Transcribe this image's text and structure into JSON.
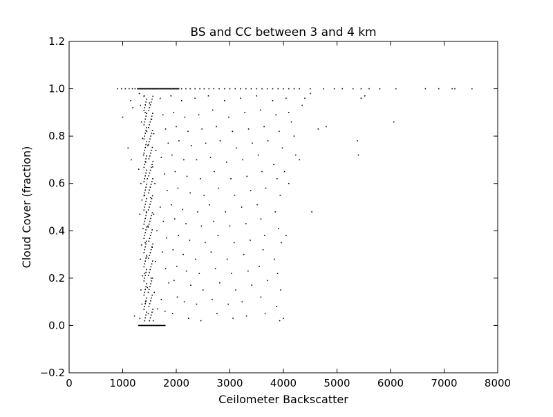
{
  "chart_data": {
    "type": "scatter",
    "title": "BS and CC between 3 and 4 km",
    "xlabel": "Ceilometer Backscatter",
    "ylabel": "Cloud Cover (fraction)",
    "xlim": [
      0,
      8000
    ],
    "ylim": [
      -0.2,
      1.2
    ],
    "xticks": [
      "0",
      "1000",
      "2000",
      "3000",
      "4000",
      "5000",
      "6000",
      "7000",
      "8000"
    ],
    "yticks": [
      "−0.2",
      "0.0",
      "0.2",
      "0.4",
      "0.6",
      "0.8",
      "1.0",
      "1.2"
    ],
    "grid": false,
    "legend": "none",
    "marker_color": "#000000",
    "points": [
      [
        900,
        1.0
      ],
      [
        980,
        1.0
      ],
      [
        1050,
        1.0
      ],
      [
        1120,
        1.0
      ],
      [
        1180,
        1.0
      ],
      [
        1230,
        1.0
      ],
      [
        1280,
        1.0
      ],
      [
        1320,
        1.0
      ],
      [
        1360,
        1.0
      ],
      [
        1400,
        1.0
      ],
      [
        1440,
        1.0
      ],
      [
        1480,
        1.0
      ],
      [
        1520,
        1.0
      ],
      [
        1560,
        1.0
      ],
      [
        1600,
        1.0
      ],
      [
        1650,
        1.0
      ],
      [
        1700,
        1.0
      ],
      [
        1760,
        1.0
      ],
      [
        1820,
        1.0
      ],
      [
        1880,
        1.0
      ],
      [
        1950,
        1.0
      ],
      [
        2020,
        1.0
      ],
      [
        2100,
        1.0
      ],
      [
        2180,
        1.0
      ],
      [
        2260,
        1.0
      ],
      [
        2350,
        1.0
      ],
      [
        2440,
        1.0
      ],
      [
        2520,
        1.0
      ],
      [
        2610,
        1.0
      ],
      [
        2700,
        1.0
      ],
      [
        2800,
        1.0
      ],
      [
        2900,
        1.0
      ],
      [
        3000,
        1.0
      ],
      [
        3100,
        1.0
      ],
      [
        3200,
        1.0
      ],
      [
        3300,
        1.0
      ],
      [
        3400,
        1.0
      ],
      [
        3500,
        1.0
      ],
      [
        3600,
        1.0
      ],
      [
        3700,
        1.0
      ],
      [
        3800,
        1.0
      ],
      [
        3900,
        1.0
      ],
      [
        4000,
        1.0
      ],
      [
        4100,
        1.0
      ],
      [
        4200,
        1.0
      ],
      [
        4300,
        1.0
      ],
      [
        4500,
        1.0
      ],
      [
        4750,
        1.0
      ],
      [
        4950,
        1.0
      ],
      [
        5100,
        1.0
      ],
      [
        5300,
        1.0
      ],
      [
        5450,
        1.0
      ],
      [
        5600,
        1.0
      ],
      [
        5800,
        1.0
      ],
      [
        6100,
        1.0
      ],
      [
        6650,
        1.0
      ],
      [
        6900,
        1.0
      ],
      [
        7150,
        1.0
      ],
      [
        7200,
        1.0
      ],
      [
        7520,
        1.0
      ],
      [
        1000,
        0.88
      ],
      [
        1100,
        0.75
      ],
      [
        1150,
        0.95
      ],
      [
        1190,
        0.92
      ],
      [
        1160,
        0.7
      ],
      [
        1220,
        0.04
      ],
      [
        1310,
        0.98
      ],
      [
        1330,
        0.93
      ],
      [
        1350,
        0.86
      ],
      [
        1370,
        0.79
      ],
      [
        1390,
        0.72
      ],
      [
        1300,
        0.66
      ],
      [
        1340,
        0.6
      ],
      [
        1360,
        0.53
      ],
      [
        1320,
        0.47
      ],
      [
        1380,
        0.41
      ],
      [
        1350,
        0.34
      ],
      [
        1330,
        0.28
      ],
      [
        1370,
        0.21
      ],
      [
        1340,
        0.15
      ],
      [
        1360,
        0.09
      ],
      [
        1320,
        0.03
      ],
      [
        1400,
        0.97
      ],
      [
        1420,
        0.9
      ],
      [
        1450,
        0.82
      ],
      [
        1470,
        0.76
      ],
      [
        1430,
        0.69
      ],
      [
        1460,
        0.62
      ],
      [
        1410,
        0.55
      ],
      [
        1440,
        0.48
      ],
      [
        1470,
        0.42
      ],
      [
        1420,
        0.35
      ],
      [
        1450,
        0.29
      ],
      [
        1410,
        0.22
      ],
      [
        1460,
        0.16
      ],
      [
        1430,
        0.1
      ],
      [
        1480,
        0.05
      ],
      [
        1500,
        0.94
      ],
      [
        1540,
        0.87
      ],
      [
        1580,
        0.81
      ],
      [
        1620,
        0.74
      ],
      [
        1560,
        0.67
      ],
      [
        1600,
        0.6
      ],
      [
        1520,
        0.54
      ],
      [
        1580,
        0.47
      ],
      [
        1640,
        0.4
      ],
      [
        1550,
        0.33
      ],
      [
        1610,
        0.27
      ],
      [
        1530,
        0.2
      ],
      [
        1590,
        0.14
      ],
      [
        1650,
        0.07
      ],
      [
        1570,
        0.02
      ],
      [
        1700,
        0.96
      ],
      [
        1750,
        0.89
      ],
      [
        1800,
        0.83
      ],
      [
        1850,
        0.77
      ],
      [
        1720,
        0.71
      ],
      [
        1780,
        0.64
      ],
      [
        1830,
        0.57
      ],
      [
        1700,
        0.5
      ],
      [
        1760,
        0.44
      ],
      [
        1820,
        0.37
      ],
      [
        1740,
        0.31
      ],
      [
        1800,
        0.24
      ],
      [
        1860,
        0.18
      ],
      [
        1720,
        0.11
      ],
      [
        1790,
        0.06
      ],
      [
        1900,
        0.97
      ],
      [
        1950,
        0.9
      ],
      [
        2000,
        0.84
      ],
      [
        2050,
        0.78
      ],
      [
        1920,
        0.72
      ],
      [
        1980,
        0.65
      ],
      [
        2030,
        0.58
      ],
      [
        1910,
        0.51
      ],
      [
        1970,
        0.45
      ],
      [
        2040,
        0.38
      ],
      [
        1940,
        0.32
      ],
      [
        2010,
        0.25
      ],
      [
        1960,
        0.19
      ],
      [
        2020,
        0.12
      ],
      [
        1930,
        0.05
      ],
      [
        2100,
        0.95
      ],
      [
        2160,
        0.88
      ],
      [
        2220,
        0.82
      ],
      [
        2280,
        0.76
      ],
      [
        2140,
        0.7
      ],
      [
        2200,
        0.63
      ],
      [
        2260,
        0.56
      ],
      [
        2120,
        0.49
      ],
      [
        2180,
        0.43
      ],
      [
        2250,
        0.36
      ],
      [
        2130,
        0.3
      ],
      [
        2190,
        0.23
      ],
      [
        2270,
        0.17
      ],
      [
        2150,
        0.1
      ],
      [
        2230,
        0.03
      ],
      [
        2350,
        0.96
      ],
      [
        2420,
        0.89
      ],
      [
        2480,
        0.83
      ],
      [
        2550,
        0.77
      ],
      [
        2380,
        0.7
      ],
      [
        2450,
        0.62
      ],
      [
        2520,
        0.55
      ],
      [
        2400,
        0.48
      ],
      [
        2470,
        0.42
      ],
      [
        2540,
        0.35
      ],
      [
        2360,
        0.28
      ],
      [
        2430,
        0.22
      ],
      [
        2500,
        0.15
      ],
      [
        2380,
        0.09
      ],
      [
        2460,
        0.02
      ],
      [
        2600,
        0.97
      ],
      [
        2680,
        0.91
      ],
      [
        2750,
        0.84
      ],
      [
        2820,
        0.78
      ],
      [
        2640,
        0.71
      ],
      [
        2710,
        0.65
      ],
      [
        2790,
        0.58
      ],
      [
        2620,
        0.51
      ],
      [
        2700,
        0.44
      ],
      [
        2780,
        0.38
      ],
      [
        2650,
        0.31
      ],
      [
        2730,
        0.24
      ],
      [
        2810,
        0.18
      ],
      [
        2670,
        0.11
      ],
      [
        2760,
        0.05
      ],
      [
        2900,
        0.95
      ],
      [
        2980,
        0.88
      ],
      [
        3050,
        0.82
      ],
      [
        3120,
        0.75
      ],
      [
        2940,
        0.69
      ],
      [
        3020,
        0.62
      ],
      [
        3090,
        0.55
      ],
      [
        2920,
        0.48
      ],
      [
        3000,
        0.42
      ],
      [
        3080,
        0.35
      ],
      [
        2950,
        0.28
      ],
      [
        3030,
        0.22
      ],
      [
        3110,
        0.15
      ],
      [
        2970,
        0.09
      ],
      [
        3060,
        0.03
      ],
      [
        3200,
        0.96
      ],
      [
        3280,
        0.9
      ],
      [
        3350,
        0.83
      ],
      [
        3420,
        0.77
      ],
      [
        3240,
        0.7
      ],
      [
        3320,
        0.63
      ],
      [
        3390,
        0.57
      ],
      [
        3220,
        0.5
      ],
      [
        3300,
        0.43
      ],
      [
        3380,
        0.36
      ],
      [
        3260,
        0.3
      ],
      [
        3340,
        0.23
      ],
      [
        3410,
        0.17
      ],
      [
        3230,
        0.1
      ],
      [
        3310,
        0.04
      ],
      [
        3500,
        0.97
      ],
      [
        3570,
        0.91
      ],
      [
        3640,
        0.84
      ],
      [
        3710,
        0.78
      ],
      [
        3530,
        0.72
      ],
      [
        3600,
        0.65
      ],
      [
        3670,
        0.58
      ],
      [
        3510,
        0.51
      ],
      [
        3580,
        0.45
      ],
      [
        3650,
        0.38
      ],
      [
        3620,
        0.32
      ],
      [
        3550,
        0.25
      ],
      [
        3700,
        0.19
      ],
      [
        3580,
        0.12
      ],
      [
        3660,
        0.05
      ],
      [
        3800,
        0.95
      ],
      [
        3860,
        0.89
      ],
      [
        3920,
        0.82
      ],
      [
        3980,
        0.75
      ],
      [
        3820,
        0.68
      ],
      [
        3880,
        0.62
      ],
      [
        3940,
        0.55
      ],
      [
        3850,
        0.48
      ],
      [
        3910,
        0.41
      ],
      [
        3960,
        0.35
      ],
      [
        3830,
        0.28
      ],
      [
        3890,
        0.22
      ],
      [
        3950,
        0.15
      ],
      [
        3870,
        0.08
      ],
      [
        3930,
        0.02
      ],
      [
        4050,
        0.96
      ],
      [
        4100,
        0.9
      ],
      [
        4150,
        0.86
      ],
      [
        4200,
        0.8
      ],
      [
        4230,
        0.72
      ],
      [
        4300,
        0.7
      ],
      [
        4020,
        0.65
      ],
      [
        4100,
        0.6
      ],
      [
        4050,
        0.38
      ],
      [
        4000,
        0.03
      ],
      [
        4350,
        0.93
      ],
      [
        4400,
        0.96
      ],
      [
        4500,
        0.98
      ],
      [
        4650,
        0.83
      ],
      [
        4800,
        0.84
      ],
      [
        4530,
        0.48
      ],
      [
        5380,
        0.78
      ],
      [
        5400,
        0.72
      ],
      [
        5450,
        0.96
      ],
      [
        5520,
        0.97
      ],
      [
        6060,
        0.86
      ]
    ]
  }
}
